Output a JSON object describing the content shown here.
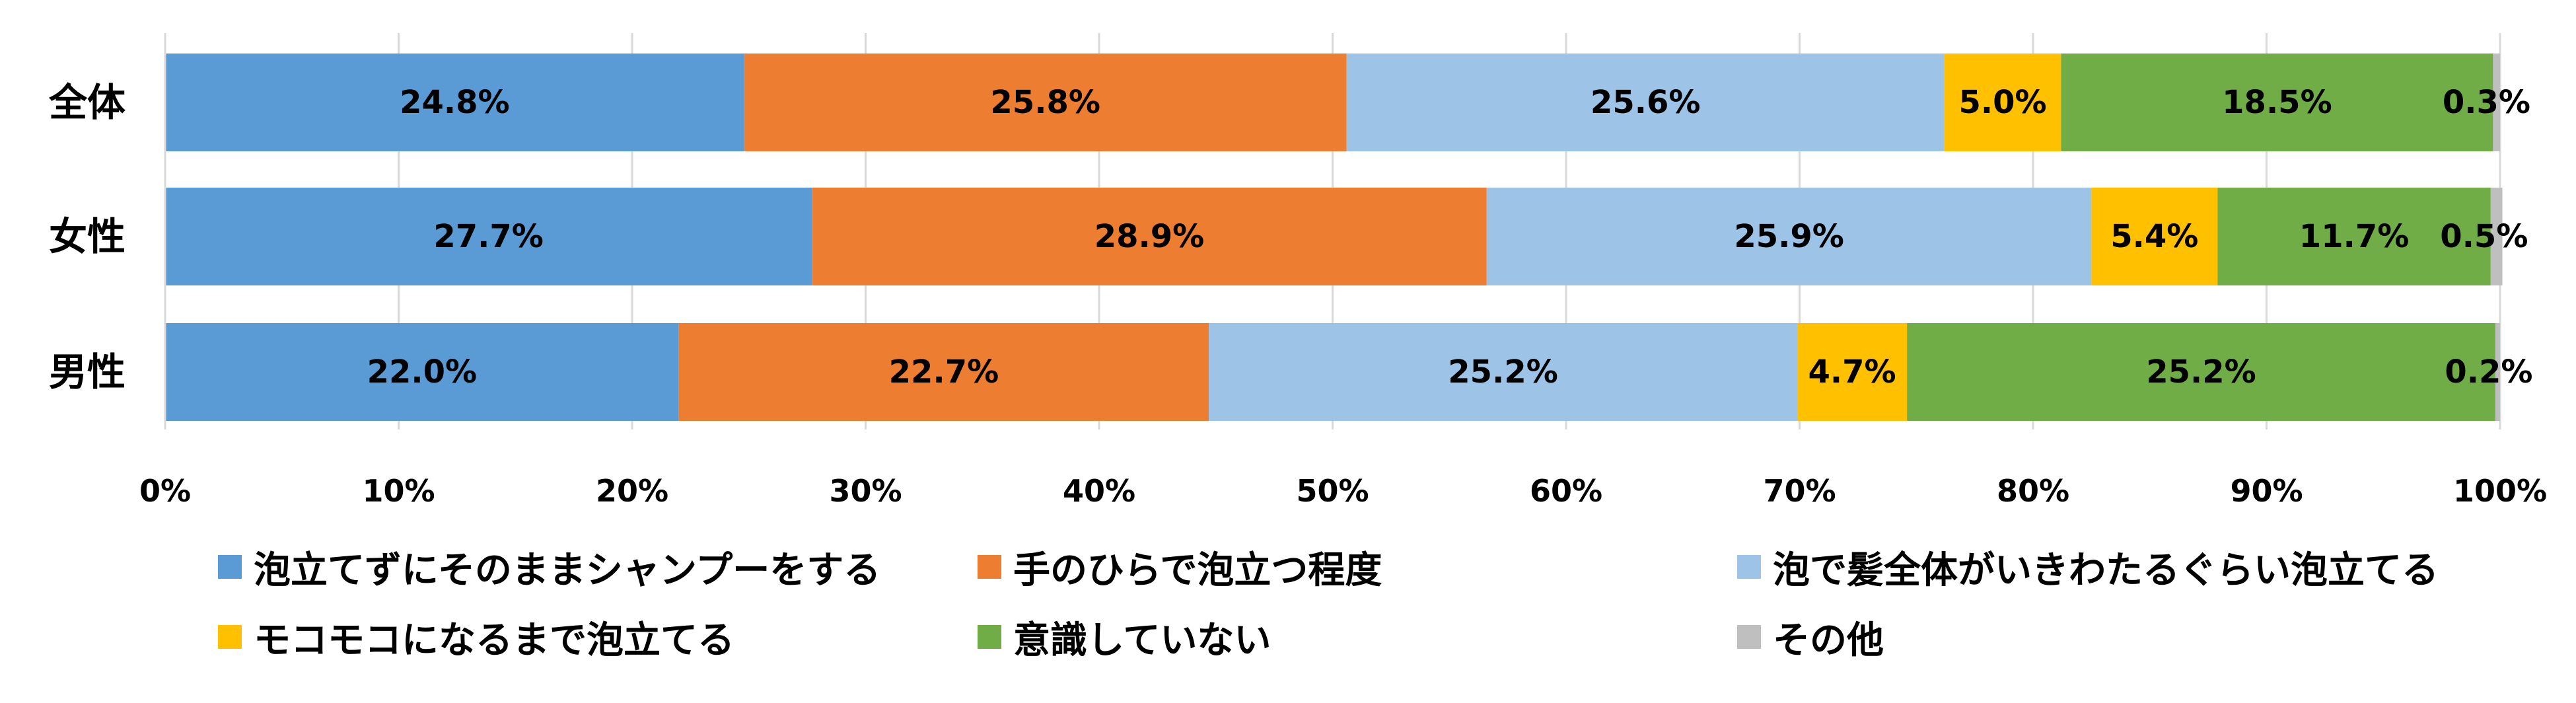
{
  "chart_data": {
    "type": "bar",
    "orientation": "horizontal",
    "stacked": "percent",
    "categories": [
      "全体",
      "女性",
      "男性"
    ],
    "series": [
      {
        "name": "泡立てずにそのままシャンプーをする",
        "color": "#5B9BD5",
        "values": [
          24.8,
          27.7,
          22.0
        ],
        "labels": [
          "24.8%",
          "27.7%",
          "22.0%"
        ]
      },
      {
        "name": "手のひらで泡立つ程度",
        "color": "#ED7D31",
        "values": [
          25.8,
          28.9,
          22.7
        ],
        "labels": [
          "25.8%",
          "28.9%",
          "22.7%"
        ]
      },
      {
        "name": "泡で髪全体がいきわたるぐらい泡立てる",
        "color": "#9DC3E6",
        "values": [
          25.6,
          25.9,
          25.2
        ],
        "labels": [
          "25.6%",
          "25.9%",
          "25.2%"
        ]
      },
      {
        "name": "モコモコになるまで泡立てる",
        "color": "#FFC000",
        "values": [
          5.0,
          5.4,
          4.7
        ],
        "labels": [
          "5.0%",
          "5.4%",
          "4.7%"
        ]
      },
      {
        "name": "意識していない",
        "color": "#70AD47",
        "values": [
          18.5,
          11.7,
          25.2
        ],
        "labels": [
          "18.5%",
          "11.7%",
          "25.2%"
        ]
      },
      {
        "name": "その他",
        "color": "#BFBFBF",
        "values": [
          0.3,
          0.5,
          0.2
        ],
        "labels": [
          "0.3%",
          "0.5%",
          "0.2%"
        ]
      }
    ],
    "xlim": [
      0,
      100
    ],
    "x_ticks": [
      "0%",
      "10%",
      "20%",
      "30%",
      "40%",
      "50%",
      "60%",
      "70%",
      "80%",
      "90%",
      "100%"
    ],
    "grid": true,
    "legend_position": "bottom"
  }
}
